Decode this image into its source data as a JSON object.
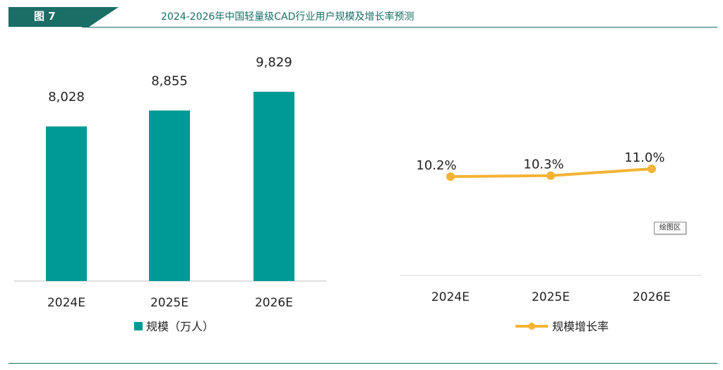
{
  "header": {
    "figure_label": "图 7",
    "title": "2024-2026年中国轻量级CAD行业用户规模及增长率预测",
    "accent_color": "#1a6e66"
  },
  "plot_area_tag": "绘图区",
  "chart_data": [
    {
      "type": "bar",
      "categories": [
        "2024E",
        "2025E",
        "2026E"
      ],
      "series": [
        {
          "name": "规模（万人）",
          "values": [
            8028,
            8855,
            9829
          ],
          "labels": [
            "8,028",
            "8,855",
            "9,829"
          ],
          "color": "#009a96"
        }
      ],
      "ylim": [
        0,
        11000
      ],
      "legend": {
        "label": "规模（万人）",
        "placement": "bottom"
      },
      "grid": false
    },
    {
      "type": "line",
      "categories": [
        "2024E",
        "2025E",
        "2026E"
      ],
      "series": [
        {
          "name": "规模增长率",
          "values": [
            10.2,
            10.3,
            11.0
          ],
          "labels": [
            "10.2%",
            "10.3%",
            "11.0%"
          ],
          "color": "#f5b335"
        }
      ],
      "ylim": [
        0,
        17.5
      ],
      "legend": {
        "label": "规模增长率",
        "placement": "bottom"
      },
      "grid": false
    }
  ]
}
